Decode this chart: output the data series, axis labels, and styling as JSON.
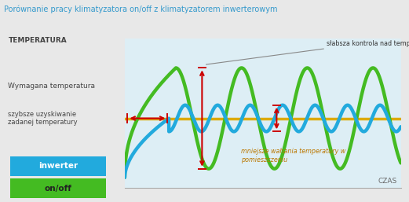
{
  "title": "Porównanie pracy klimatyzatora on/off z klimatyzatorem inwerterowym",
  "title_color": "#3399cc",
  "bg_color": "#e8e8e8",
  "plot_bg_color": "#ddeef5",
  "grid_color": "#c0d8e8",
  "temp_label": "TEMPERATURA",
  "required_temp_label": "Wymagana temperatura",
  "time_label": "CZAS",
  "annotation1": "słabsza kontrola nad temperaturą",
  "annotation2": "szybsze uzyskiwanie\nzadanej temperatury",
  "annotation3": "mniejsze wahania temperatury w\npomieszczeniu",
  "legend_inwerter": "inwerter",
  "legend_onoff": "on/off",
  "inwerter_color": "#22aadd",
  "onoff_color": "#44bb22",
  "required_temp_color": "#ddaa00",
  "arrow_color": "#cc0000",
  "legend_inwerter_bg": "#22aadd",
  "legend_onoff_bg": "#44bb22",
  "ylim": [
    -2.0,
    2.3
  ],
  "xlim": [
    0,
    10
  ]
}
